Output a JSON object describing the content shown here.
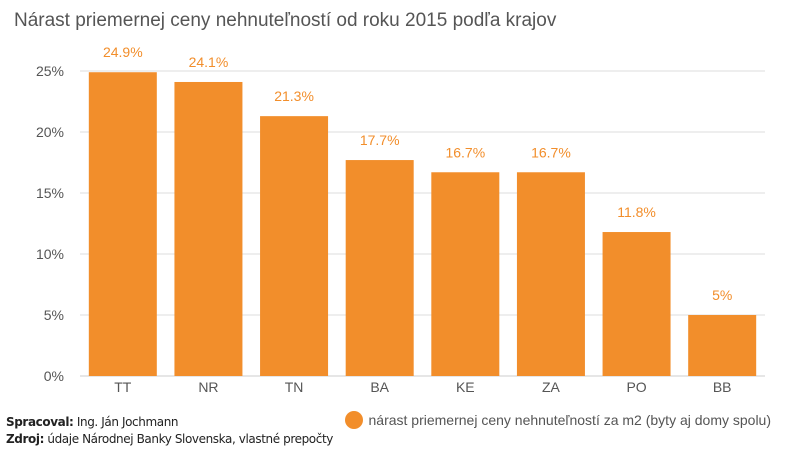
{
  "colors": {
    "bar": "#f28e2b",
    "label": "#f28e2b",
    "grid": "#dddddd",
    "axis_text": "#555555"
  },
  "footer": {
    "author_label": "Spracoval:",
    "author_value": " Ing. Ján Jochmann",
    "source_label": "Zdroj:",
    "source_value": " údaje Národnej Banky Slovenska, vlastné prepočty"
  },
  "chart_data": {
    "type": "bar",
    "title": "Nárast priemernej ceny nehnuteľností od roku 2015 podľa krajov",
    "xlabel": "",
    "ylabel": "",
    "categories": [
      "TT",
      "NR",
      "TN",
      "BA",
      "KE",
      "ZA",
      "PO",
      "BB"
    ],
    "series": [
      {
        "name": "nárast priemernej ceny nehnuteľností za m2 (byty aj domy spolu)",
        "values": [
          24.9,
          24.1,
          21.3,
          17.7,
          16.7,
          16.7,
          11.8,
          5
        ],
        "data_labels": [
          "24.9%",
          "24.1%",
          "21.3%",
          "17.7%",
          "16.7%",
          "16.7%",
          "11.8%",
          "5%"
        ]
      }
    ],
    "ylim": [
      0,
      25
    ],
    "yticks": [
      {
        "value": 0,
        "label": "0%"
      },
      {
        "value": 5,
        "label": "5%"
      },
      {
        "value": 10,
        "label": "10%"
      },
      {
        "value": 15,
        "label": "15%"
      },
      {
        "value": 20,
        "label": "20%"
      },
      {
        "value": 25,
        "label": "25%"
      }
    ],
    "grid": true,
    "legend_position": "bottom-right"
  }
}
